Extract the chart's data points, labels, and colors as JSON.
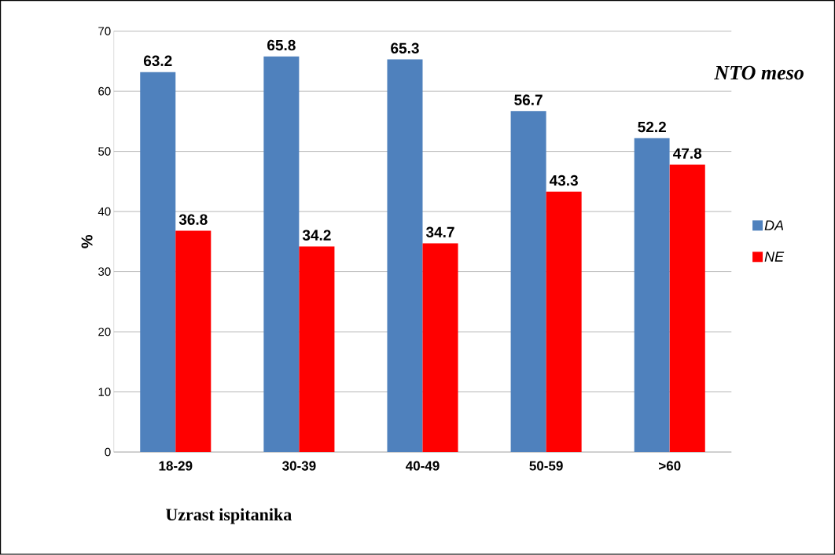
{
  "chart_data": {
    "type": "bar",
    "title": "NTO meso",
    "xlabel": "Uzrast ispitanika",
    "ylabel": "%",
    "categories": [
      "18-29",
      "30-39",
      "40-49",
      "50-59",
      ">60"
    ],
    "series": [
      {
        "name": "DA",
        "color": "#4f81bd",
        "values": [
          63.2,
          65.8,
          65.3,
          56.7,
          52.2
        ]
      },
      {
        "name": "NE",
        "color": "#ff0000",
        "values": [
          36.8,
          34.2,
          34.7,
          43.3,
          47.8
        ]
      }
    ],
    "ylim": [
      0,
      70
    ],
    "yticks": [
      0,
      10,
      20,
      30,
      40,
      50,
      60,
      70
    ],
    "grid": "y",
    "legend": "right",
    "data_labels": true
  }
}
